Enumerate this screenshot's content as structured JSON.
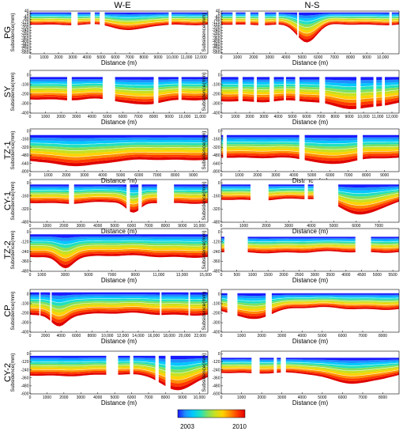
{
  "columns": [
    "W-E",
    "N-S"
  ],
  "colorbar": {
    "min_label": "2003",
    "max_label": "2010",
    "colors": [
      "#1a1aff",
      "#1e90ff",
      "#00c8ff",
      "#20e0c0",
      "#7fe060",
      "#c8e020",
      "#ffd200",
      "#ff8c00",
      "#ff3a00",
      "#e00000"
    ]
  },
  "chart_data": [
    {
      "type": "area",
      "panel": "PG W-E",
      "row_label": "PG",
      "column": "W-E",
      "xlabel": "Distance (m)",
      "ylabel": "Subsidence(mm)",
      "xlim": [
        0,
        12500
      ],
      "ylim": [
        -580,
        40
      ],
      "xticks": [
        0,
        1000,
        2000,
        3000,
        4000,
        5000,
        6000,
        7000,
        8000,
        9000,
        10000,
        11000,
        12000
      ],
      "xtick_labels": [
        "0",
        "1000",
        "2000",
        "3000",
        "4000",
        "5000",
        "6000",
        "7000",
        "8000",
        "9000",
        "10,000",
        "11,000",
        "12,000"
      ],
      "yticks": [
        40,
        0,
        -40,
        -80,
        -120,
        -160,
        -200,
        -240,
        -280,
        -320,
        -360,
        -400,
        -440,
        -480,
        -520,
        -560
      ],
      "ytick_labels": [
        "40",
        "0",
        "-40",
        "-80",
        "-120",
        "-160",
        "-200",
        "-240",
        "-280",
        "-320",
        "-360",
        "-400",
        "-440",
        "-480",
        "-520",
        "-560"
      ],
      "top": 20,
      "bottom": -150,
      "gaps": [
        [
          2900,
          3350
        ],
        [
          4250,
          4550
        ],
        [
          4900,
          5250
        ],
        [
          9750,
          9950
        ]
      ],
      "dip": {
        "x": 7000,
        "w": 1500,
        "depth": 100
      }
    },
    {
      "type": "area",
      "panel": "PG N-S",
      "row_label": "",
      "column": "N-S",
      "xlabel": "Distance (m)",
      "ylabel": "Subsidence(mm)",
      "xlim": [
        0,
        11000
      ],
      "ylim": [
        -580,
        40
      ],
      "xticks": [
        0,
        1000,
        2000,
        3000,
        4000,
        5000,
        6000,
        7000,
        8000,
        9000,
        10000
      ],
      "xtick_labels": [
        "0",
        "1000",
        "2000",
        "3000",
        "4000",
        "5000",
        "6000",
        "7000",
        "8000",
        "9000",
        "10,000"
      ],
      "yticks": [
        40,
        0,
        -40,
        -80,
        -120,
        -160,
        -200,
        -240,
        -280,
        -320,
        -360,
        -400,
        -440,
        -480,
        -520,
        -560
      ],
      "ytick_labels": [
        "40",
        "0",
        "-40",
        "-80",
        "-120",
        "-160",
        "-200",
        "-240",
        "-280",
        "-320",
        "-360",
        "-400",
        "-440",
        "-480",
        "-520",
        "-560"
      ],
      "top": 20,
      "bottom": -150,
      "gaps": [
        [
          700,
          900
        ],
        [
          1500,
          1800
        ],
        [
          2300,
          2700
        ],
        [
          3400,
          3550
        ],
        [
          4700,
          4800
        ],
        [
          10400,
          10550
        ]
      ],
      "dip": {
        "x": 5300,
        "w": 900,
        "depth": 270
      }
    },
    {
      "type": "area",
      "panel": "SY W-E",
      "row_label": "SY",
      "column": "W-E",
      "xlabel": "Distance (m)",
      "ylabel": "Subsidence(mm)",
      "xlim": [
        0,
        11500
      ],
      "ylim": [
        -400,
        50
      ],
      "xticks": [
        0,
        1000,
        2000,
        3000,
        4000,
        5000,
        6000,
        7000,
        8000,
        9000,
        10000,
        11000
      ],
      "xtick_labels": [
        "0",
        "1000",
        "2000",
        "3000",
        "4000",
        "5000",
        "6000",
        "7000",
        "8000",
        "9000",
        "10,000",
        "11,000"
      ],
      "yticks": [
        0,
        -100,
        -200,
        -300,
        -400
      ],
      "ytick_labels": [
        "0",
        "-100",
        "-200",
        "-300",
        "-400"
      ],
      "top": -20,
      "bottom": -250,
      "gaps": [
        [
          2400,
          2700
        ],
        [
          4700,
          5500
        ],
        [
          8000,
          8300
        ],
        [
          9600,
          9800
        ]
      ],
      "dip": {
        "x": 7000,
        "w": 1600,
        "depth": 70
      }
    },
    {
      "type": "area",
      "panel": "SY N-S",
      "row_label": "",
      "column": "N-S",
      "xlabel": "Distance (m)",
      "ylabel": "Subsidence(mm)",
      "xlim": [
        0,
        12500
      ],
      "ylim": [
        -400,
        50
      ],
      "xticks": [
        0,
        1000,
        2000,
        3000,
        4000,
        5000,
        6000,
        7000,
        8000,
        9000,
        10000,
        11000,
        12000
      ],
      "xtick_labels": [
        "0",
        "1000",
        "2000",
        "3000",
        "4000",
        "5000",
        "6000",
        "7000",
        "8000",
        "9000",
        "10,000",
        "11,000",
        "12,000"
      ],
      "yticks": [
        0,
        -100,
        -200,
        -300,
        -400
      ],
      "ytick_labels": [
        "0",
        "-100",
        "-200",
        "-300",
        "-400"
      ],
      "top": -20,
      "bottom": -270,
      "gaps": [
        [
          1200,
          1500
        ],
        [
          2300,
          2500
        ],
        [
          3400,
          3700
        ],
        [
          4400,
          4550
        ],
        [
          5200,
          5500
        ],
        [
          6900,
          7300
        ],
        [
          9500,
          9800
        ],
        [
          10700,
          10900
        ],
        [
          11300,
          11500
        ]
      ],
      "dip": {
        "x": 9200,
        "w": 2500,
        "depth": 80
      }
    },
    {
      "type": "area",
      "panel": "TZ-1 W-E",
      "row_label": "TZ-1",
      "column": "W-E",
      "xlabel": "Distance (m)",
      "ylabel": "Subsidence(mm)",
      "xlim": [
        0,
        9800
      ],
      "ylim": [
        -800,
        40
      ],
      "xticks": [
        0,
        1000,
        2000,
        3000,
        4000,
        5000,
        6000,
        7000,
        8000,
        9000
      ],
      "xtick_labels": [
        "0",
        "1000",
        "2000",
        "3000",
        "4000",
        "5000",
        "6000",
        "7000",
        "8000",
        "9000"
      ],
      "yticks": [
        0,
        -160,
        -320,
        -480,
        -640,
        -800
      ],
      "ytick_labels": [
        "0",
        "-160",
        "-320",
        "-480",
        "-640",
        "-800"
      ],
      "top": -80,
      "bottom": -560,
      "gaps": [],
      "dip": {
        "x": 2800,
        "w": 2200,
        "depth": 120
      }
    },
    {
      "type": "area",
      "panel": "TZ-1 N-S",
      "row_label": "",
      "column": "N-S",
      "xlabel": "Distance (m)",
      "ylabel": "Subsidence(mm)",
      "xlim": [
        0,
        9800
      ],
      "ylim": [
        -800,
        40
      ],
      "xticks": [
        0,
        1000,
        2000,
        3000,
        4000,
        5000,
        6000,
        7000,
        8000,
        9000
      ],
      "xtick_labels": [
        "0",
        "1000",
        "2000",
        "3000",
        "4000",
        "5000",
        "6000",
        "7000",
        "8000",
        "9000"
      ],
      "yticks": [
        0,
        -160,
        -320,
        -480,
        -640,
        -800
      ],
      "ytick_labels": [
        "0",
        "-160",
        "-320",
        "-480",
        "-640",
        "-800"
      ],
      "top": -80,
      "bottom": -520,
      "gaps": [
        [
          100,
          300
        ],
        [
          4300,
          4600
        ],
        [
          7500,
          7800
        ]
      ],
      "dip": {
        "x": 6000,
        "w": 1500,
        "depth": 140
      }
    },
    {
      "type": "area",
      "panel": "CY-1 W-E",
      "row_label": "CY-1",
      "column": "W-E",
      "xlabel": "Distance (m)",
      "ylabel": "Subsidence(mm)",
      "xlim": [
        0,
        10500
      ],
      "ylim": [
        -480,
        40
      ],
      "xticks": [
        0,
        1000,
        2000,
        3000,
        4000,
        5000,
        6000,
        7000,
        8000,
        9000,
        10000
      ],
      "xtick_labels": [
        "0",
        "1000",
        "2000",
        "3000",
        "4000",
        "5000",
        "6000",
        "7000",
        "8000",
        "9000",
        "10,000"
      ],
      "yticks": [
        0,
        -160,
        -320,
        -480
      ],
      "ytick_labels": [
        "0",
        "-160",
        "-320",
        "-480"
      ],
      "top": -20,
      "bottom": -240,
      "gaps": [
        [
          2300,
          2600
        ],
        [
          5700,
          5900
        ],
        [
          6400,
          6600
        ],
        [
          7500,
          8500
        ]
      ],
      "dip": {
        "x": 6100,
        "w": 600,
        "depth": 140
      }
    },
    {
      "type": "area",
      "panel": "CY-1 N-S",
      "row_label": "",
      "column": "N-S",
      "xlabel": "Distance (m)",
      "ylabel": "Subsidence(mm)",
      "xlim": [
        0,
        7900
      ],
      "ylim": [
        -480,
        40
      ],
      "xticks": [
        0,
        1000,
        2000,
        3000,
        4000,
        5000,
        6000,
        7000
      ],
      "xtick_labels": [
        "0",
        "1000",
        "2000",
        "3000",
        "4000",
        "5000",
        "6000",
        "7000"
      ],
      "yticks": [
        0,
        -160,
        -320,
        -480
      ],
      "ytick_labels": [
        "0",
        "-160",
        "-320",
        "-480"
      ],
      "top": -20,
      "bottom": -200,
      "gaps": [
        [
          1300,
          2100
        ],
        [
          3700,
          3850
        ],
        [
          4100,
          5200
        ]
      ],
      "dip": {
        "x": 6200,
        "w": 1200,
        "depth": 180
      }
    },
    {
      "type": "area",
      "panel": "TZ-2 W-E",
      "row_label": "TZ-2",
      "column": "W-E",
      "xlabel": "Distance (m)",
      "ylabel": "Subsidence(mm)",
      "xlim": [
        0,
        15200
      ],
      "ylim": [
        -480,
        40
      ],
      "xticks": [
        0,
        1000,
        3000,
        5000,
        7000,
        9000,
        11000,
        13000,
        15000
      ],
      "xtick_labels": [
        "0",
        "1000",
        "3000",
        "5000",
        "7000",
        "9000",
        "11,000",
        "13,000",
        "15,000"
      ],
      "yticks": [
        0,
        -120,
        -240,
        -360,
        -480
      ],
      "ytick_labels": [
        "0",
        "-120",
        "-240",
        "-360",
        "-480"
      ],
      "top": -30,
      "bottom": -300,
      "gaps": [],
      "dip": {
        "x": 3000,
        "w": 900,
        "depth": 130
      }
    },
    {
      "type": "area",
      "panel": "TZ-2 N-S",
      "row_label": "",
      "column": "N-S",
      "xlabel": "Distance (m)",
      "ylabel": "Subsidence(mm)",
      "xlim": [
        0,
        5700
      ],
      "ylim": [
        -480,
        40
      ],
      "xticks": [
        0,
        500,
        1000,
        1500,
        2000,
        2500,
        3000,
        3500,
        4000,
        4500,
        5000,
        5500
      ],
      "xtick_labels": [
        "0",
        "500",
        "1000",
        "1500",
        "2000",
        "2500",
        "3000",
        "3500",
        "4000",
        "4500",
        "5000",
        "5500"
      ],
      "yticks": [
        0,
        -120,
        -240,
        -360,
        -480
      ],
      "ytick_labels": [
        "0",
        "-120",
        "-240",
        "-360",
        "-480"
      ],
      "top": -60,
      "bottom": -240,
      "gaps": [
        [
          100,
          850
        ],
        [
          4300,
          4800
        ]
      ],
      "dip": {
        "x": 2500,
        "w": 1000,
        "depth": 20
      }
    },
    {
      "type": "area",
      "panel": "CP W-E",
      "row_label": "CP",
      "column": "W-E",
      "xlabel": "Distance (m)",
      "ylabel": "Subsidence(mm)",
      "xlim": [
        0,
        23000
      ],
      "ylim": [
        -400,
        50
      ],
      "xticks": [
        0,
        2000,
        4000,
        6000,
        8000,
        10000,
        12000,
        14000,
        16000,
        18000,
        20000,
        22000
      ],
      "xtick_labels": [
        "0",
        "2000",
        "4000",
        "6000",
        "8000",
        "10,000",
        "12,000",
        "14,000",
        "16,000",
        "18,000",
        "20,000",
        "22,000"
      ],
      "yticks": [
        0,
        -100,
        -200,
        -300,
        -400
      ],
      "ytick_labels": [
        "0",
        "-100",
        "-200",
        "-300",
        "-400"
      ],
      "top": 20,
      "bottom": -210,
      "gaps": [
        [
          1200,
          1350
        ],
        [
          2600,
          2800
        ],
        [
          16800,
          17000
        ],
        [
          20500,
          20700
        ]
      ],
      "dip": {
        "x": 3700,
        "w": 1400,
        "depth": 120
      }
    },
    {
      "type": "area",
      "panel": "CP N-S",
      "row_label": "",
      "column": "N-S",
      "xlabel": "Distance (m)",
      "ylabel": "Subsidence(mm)",
      "xlim": [
        0,
        8800
      ],
      "ylim": [
        -400,
        50
      ],
      "xticks": [
        0,
        1000,
        2000,
        3000,
        4000,
        5000,
        6000,
        7000,
        8000
      ],
      "xtick_labels": [
        "0",
        "1000",
        "2000",
        "3000",
        "4000",
        "5000",
        "6000",
        "7000",
        "8000"
      ],
      "yticks": [
        0,
        -100,
        -200,
        -300,
        -400
      ],
      "ytick_labels": [
        "0",
        "-100",
        "-200",
        "-300",
        "-400"
      ],
      "top": 10,
      "bottom": -150,
      "gaps": [
        [
          300,
          800
        ],
        [
          2200,
          2500
        ]
      ],
      "dip": {
        "x": 1500,
        "w": 1200,
        "depth": 100
      }
    },
    {
      "type": "area",
      "panel": "CY-2 W-E",
      "row_label": "CY-2",
      "column": "W-E",
      "xlabel": "Distance (m)",
      "ylabel": "Subsidence(mm)",
      "xlim": [
        0,
        10500
      ],
      "ylim": [
        -600,
        40
      ],
      "xticks": [
        0,
        1000,
        2000,
        3000,
        4000,
        5000,
        6000,
        7000,
        8000,
        9000,
        10000
      ],
      "xtick_labels": [
        "0",
        "1000",
        "2000",
        "3000",
        "4000",
        "5000",
        "6000",
        "7000",
        "8000",
        "9000",
        "10,000"
      ],
      "yticks": [
        0,
        -120,
        -240,
        -360,
        -480,
        -600
      ],
      "ytick_labels": [
        "0",
        "-120",
        "-240",
        "-360",
        "-480",
        "-600"
      ],
      "top": -30,
      "bottom": -320,
      "gaps": [
        [
          4500,
          5200
        ],
        [
          5900,
          6100
        ],
        [
          7400,
          7600
        ],
        [
          8000,
          8300
        ]
      ],
      "dip": {
        "x": 8700,
        "w": 1200,
        "depth": 220
      }
    },
    {
      "type": "area",
      "panel": "CY-2 N-S",
      "row_label": "",
      "column": "N-S",
      "xlabel": "Distance (m)",
      "ylabel": "Subsidence(mm)",
      "xlim": [
        0,
        8800
      ],
      "ylim": [
        -600,
        40
      ],
      "xticks": [
        0,
        1000,
        2000,
        3000,
        4000,
        5000,
        6000,
        7000,
        8000
      ],
      "xtick_labels": [
        "0",
        "1000",
        "2000",
        "3000",
        "4000",
        "5000",
        "6000",
        "7000",
        "8000"
      ],
      "yticks": [
        0,
        -120,
        -240,
        -360,
        -480,
        -600
      ],
      "ytick_labels": [
        "0",
        "-120",
        "-240",
        "-360",
        "-480",
        "-600"
      ],
      "top": -60,
      "bottom": -280,
      "gaps": [
        [
          1500,
          1900
        ],
        [
          2600,
          2750
        ],
        [
          2950,
          3200
        ]
      ],
      "dip": {
        "x": 6500,
        "w": 1800,
        "depth": 160
      }
    }
  ]
}
